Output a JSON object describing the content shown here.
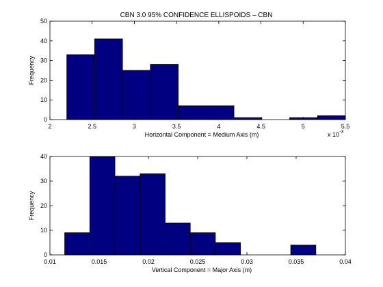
{
  "figure": {
    "title": "CBN 3.0 95% CONFIDENCE ELLISPOIDS – CBN"
  },
  "colors": {
    "bar_fill": "#000080",
    "bar_edge": "#000000",
    "axes": "#000000",
    "background": "#ffffff"
  },
  "chart_data": [
    {
      "type": "bar",
      "title": "CBN 3.0 95% CONFIDENCE ELLISPOIDS – CBN",
      "xlabel": "Horizontal Component = Medium Axis (m)",
      "ylabel": "Frequency",
      "x_exponent_label": "x 10",
      "x_exponent_power": "-3",
      "xlim": [
        2,
        5.5
      ],
      "ylim": [
        0,
        50
      ],
      "xticks": [
        2,
        2.5,
        3,
        3.5,
        4,
        4.5,
        5,
        5.5
      ],
      "xtick_labels": [
        "2",
        "2.5",
        "3",
        "3.5",
        "4",
        "4.5",
        "5",
        "5.5"
      ],
      "yticks": [
        0,
        10,
        20,
        30,
        40,
        50
      ],
      "ytick_labels": [
        "0",
        "10",
        "20",
        "30",
        "40",
        "50"
      ],
      "bin_edges": [
        2.2,
        2.53,
        2.86,
        3.19,
        3.52,
        3.85,
        4.18,
        4.51,
        4.84,
        5.17,
        5.5
      ],
      "values": [
        33,
        41,
        25,
        28,
        7,
        7,
        1,
        0,
        1,
        2
      ]
    },
    {
      "type": "bar",
      "title": "",
      "xlabel": "Vertical Component = Major Axis (m)",
      "ylabel": "Frequency",
      "xlim": [
        0.01,
        0.04
      ],
      "ylim": [
        0,
        40
      ],
      "xticks": [
        0.01,
        0.015,
        0.02,
        0.025,
        0.03,
        0.035,
        0.04
      ],
      "xtick_labels": [
        "0.01",
        "0.015",
        "0.02",
        "0.025",
        "0.03",
        "0.035",
        "0.04"
      ],
      "yticks": [
        0,
        10,
        20,
        30,
        40
      ],
      "ytick_labels": [
        "0",
        "10",
        "20",
        "30",
        "40"
      ],
      "bin_edges": [
        0.0115,
        0.01405,
        0.0166,
        0.01915,
        0.0217,
        0.02425,
        0.0268,
        0.02935,
        0.0319,
        0.03445,
        0.037
      ],
      "values": [
        9,
        40,
        32,
        33,
        13,
        9,
        5,
        0,
        0,
        4
      ]
    }
  ]
}
